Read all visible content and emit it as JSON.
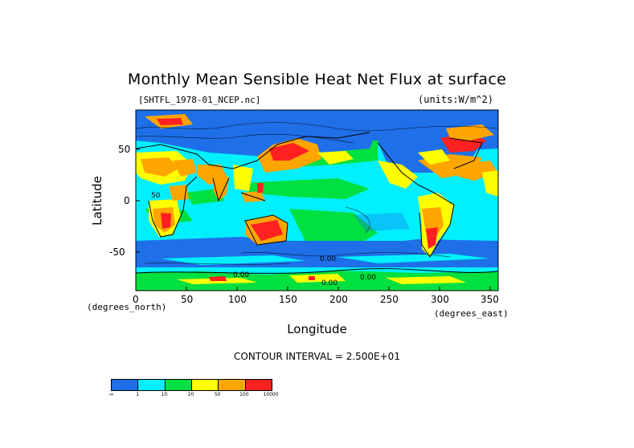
{
  "title": "Monthly Mean Sensible Heat Net Flux at surface",
  "file_label": "[SHTFL_1978-01_NCEP.nc]",
  "units_label": "(units:W/m^2)",
  "xlabel": "Longitude",
  "ylabel": "Latitude",
  "x_units": "(degrees_north)",
  "y_units": "(degrees_east)",
  "contour_interval": "CONTOUR INTERVAL = 2.500E+01",
  "colors": {
    "c_lt1": "#1e6fe8",
    "c_1_10": "#00f0ff",
    "c_10_20": "#00e040",
    "c_20_50": "#ffff00",
    "c_50_100": "#ffa500",
    "c_100_10000": "#ff2020"
  },
  "colorbar": {
    "labels": [
      "-∞",
      "1",
      "10",
      "20",
      "50",
      "100",
      "10000"
    ],
    "colors": [
      "#1e6fe8",
      "#00f0ff",
      "#00e040",
      "#ffff00",
      "#ffa500",
      "#ff2020"
    ]
  },
  "chart_data": {
    "type": "heatmap",
    "title": "Monthly Mean Sensible Heat Net Flux at surface",
    "xlabel": "Longitude",
    "ylabel": "Latitude",
    "xlim": [
      0,
      357.5
    ],
    "ylim": [
      -88,
      88
    ],
    "x_ticks": [
      "0",
      "50",
      "100",
      "150",
      "200",
      "250",
      "300",
      "350"
    ],
    "y_ticks": [
      "50",
      "0",
      "-50"
    ],
    "contour_labels": [
      "0.00",
      "0.00",
      "0.00",
      "0.00",
      "50"
    ],
    "legend_levels": [
      "-∞",
      "1",
      "10",
      "20",
      "50",
      "100",
      "10000"
    ]
  }
}
